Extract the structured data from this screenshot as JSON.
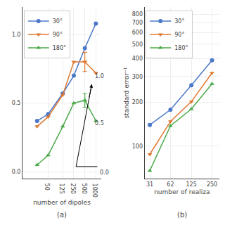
{
  "chart_data": [
    {
      "type": "line",
      "title": "(a)",
      "x_label": "number of dipoles",
      "x": [
        25,
        50,
        125,
        250,
        500,
        1000
      ],
      "series": [
        {
          "name": "30°",
          "color": "#4c78c8",
          "marker": "circle",
          "values": [
            0.37,
            0.42,
            0.57,
            0.7,
            0.9,
            1.08
          ]
        },
        {
          "name": "90°",
          "color": "#e07830",
          "marker": "triangle-down",
          "values": [
            0.33,
            0.4,
            0.56,
            0.8,
            0.8,
            0.72
          ],
          "error": [
            null,
            null,
            null,
            null,
            0.07,
            null
          ]
        },
        {
          "name": "180°",
          "color": "#4aaa4a",
          "marker": "triangle-up",
          "values": [
            0.05,
            0.12,
            0.33,
            0.5,
            0.52,
            0.37
          ],
          "error": [
            null,
            null,
            null,
            null,
            0.05,
            null
          ]
        }
      ],
      "xlim": [
        10,
        1400
      ],
      "xticks": [
        50,
        125,
        250,
        500,
        1000
      ],
      "ylim": [
        -0.05,
        1.2
      ],
      "yticks": [
        {
          "value": 0,
          "label": "0.0"
        },
        0.5,
        {
          "value": 1,
          "label": "1.0"
        }
      ],
      "log": "x",
      "grid": true,
      "legend": "upper left",
      "annotations": [
        "1.0",
        "0.5",
        "0.0"
      ]
    },
    {
      "type": "line",
      "title": "(b)",
      "x_label": "number of realiza",
      "y_label": "standard error⁻¹",
      "x": [
        31,
        62,
        125,
        250
      ],
      "series": [
        {
          "name": "30°",
          "color": "#4c78c8",
          "marker": "circle",
          "values": [
            140,
            178,
            262,
            388
          ]
        },
        {
          "name": "90°",
          "color": "#e07830",
          "marker": "triangle-down",
          "values": [
            88,
            148,
            202,
            318
          ]
        },
        {
          "name": "180°",
          "color": "#4aaa4a",
          "marker": "triangle-up",
          "values": [
            68,
            138,
            180,
            268
          ]
        }
      ],
      "xlim": [
        26,
        320
      ],
      "xticks": [
        31,
        62,
        125,
        250
      ],
      "ylim": [
        60,
        900
      ],
      "yticks": [
        100,
        200,
        300,
        400,
        500,
        600,
        700,
        800
      ],
      "log": true,
      "grid": true,
      "legend": "upper left"
    }
  ]
}
